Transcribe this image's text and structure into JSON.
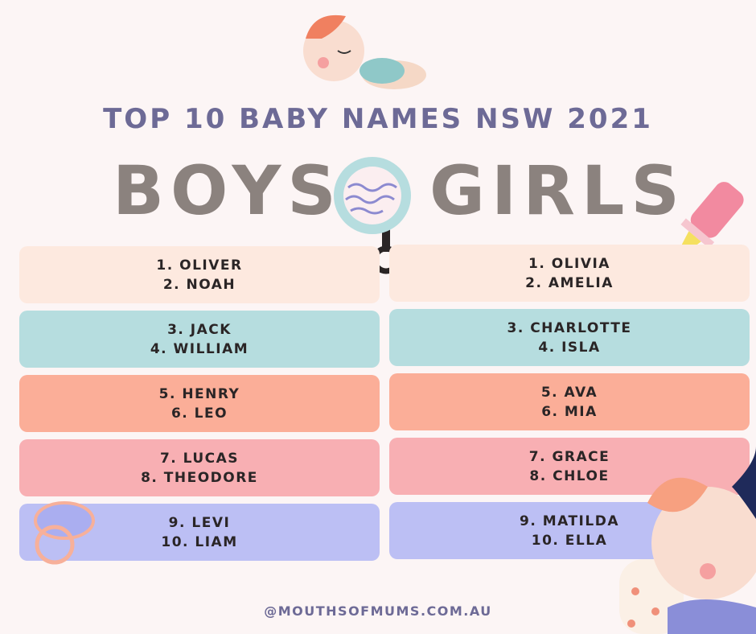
{
  "title": "TOP 10 BABY NAMES NSW 2021",
  "boys_heading": "BOYS",
  "girls_heading": "GIRLS",
  "boys": [
    [
      "1. OLIVER",
      "2. NOAH"
    ],
    [
      "3. JACK",
      "4. WILLIAM"
    ],
    [
      "5. HENRY",
      "6. LEO"
    ],
    [
      "7. LUCAS",
      "8. THEODORE"
    ],
    [
      "9. LEVI",
      "10. LIAM"
    ]
  ],
  "girls": [
    [
      "1. OLIVIA",
      "2. AMELIA"
    ],
    [
      "3. CHARLOTTE",
      "4. ISLA"
    ],
    [
      "5. AVA",
      "6. MIA"
    ],
    [
      "7. GRACE",
      "8. CHLOE"
    ],
    [
      "9. MATILDA",
      "10. ELLA"
    ]
  ],
  "row_colors": [
    "#fde9df",
    "#b6dddf",
    "#fbae98",
    "#f8afb3",
    "#bcbff4"
  ],
  "footer": "@MOUTHSOFMUMS.COM.AU"
}
